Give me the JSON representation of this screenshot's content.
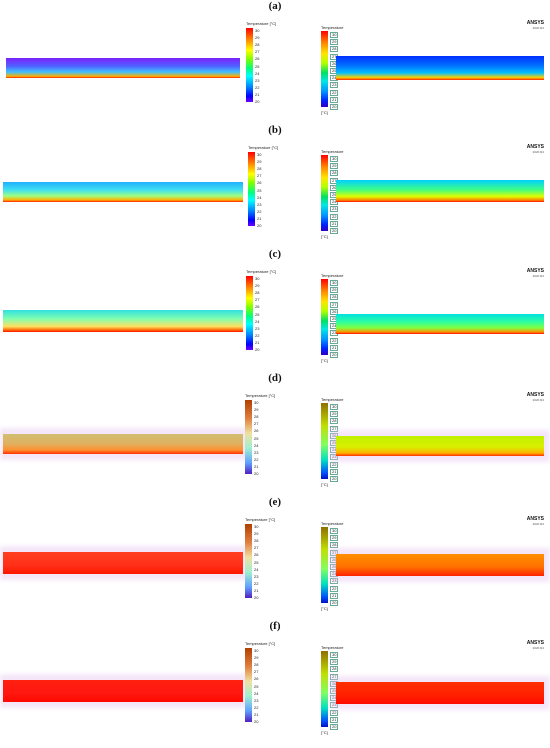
{
  "panels": [
    {
      "label": "(a)",
      "legend_title": "Temperature [°C]",
      "legend_title_right": "Temperature",
      "unit": "[°C]",
      "ansys": "ANSYS",
      "version": "2020 R2",
      "ticks": [
        "30",
        "29",
        "28",
        "27",
        "26",
        "25",
        "24",
        "23",
        "22",
        "21",
        "20"
      ]
    },
    {
      "label": "(b)",
      "legend_title": "Temperature [°C]",
      "legend_title_right": "Temperature",
      "unit": "[°C]",
      "ansys": "ANSYS",
      "version": "2020 R2",
      "ticks": [
        "30",
        "29",
        "28",
        "27",
        "26",
        "25",
        "24",
        "23",
        "22",
        "21",
        "20"
      ]
    },
    {
      "label": "(c)",
      "legend_title": "Temperature [°C]",
      "legend_title_right": "Temperature",
      "unit": "[°C]",
      "ansys": "ANSYS",
      "version": "2020 R2",
      "ticks": [
        "30",
        "29",
        "28",
        "27",
        "26",
        "25",
        "24",
        "23",
        "22",
        "21",
        "20"
      ]
    },
    {
      "label": "(d)",
      "legend_title": "Temperature [°C]",
      "legend_title_right": "Temperature",
      "unit": "[°C]",
      "ansys": "ANSYS",
      "version": "2020 R2",
      "ticks": [
        "30",
        "29",
        "28",
        "27",
        "26",
        "25",
        "24",
        "23",
        "22",
        "21",
        "20"
      ]
    },
    {
      "label": "(e)",
      "legend_title": "Temperature [°C]",
      "legend_title_right": "Temperature",
      "unit": "[°C]",
      "ansys": "ANSYS",
      "version": "2020 R2",
      "ticks": [
        "30",
        "29",
        "28",
        "27",
        "26",
        "25",
        "24",
        "23",
        "22",
        "21",
        "20"
      ]
    },
    {
      "label": "(f)",
      "legend_title": "Temperature [°C]",
      "legend_title_right": "Temperature",
      "unit": "[°C]",
      "ansys": "ANSYS",
      "version": "2020 R2",
      "ticks": [
        "30",
        "29",
        "28",
        "27",
        "26",
        "25",
        "24",
        "23",
        "22",
        "21",
        "20"
      ]
    }
  ],
  "colors": {
    "rainbow": [
      "#ff0000",
      "#ff8000",
      "#ffff00",
      "#80ff00",
      "#00ff80",
      "#00ffff",
      "#0080ff",
      "#0000ff",
      "#6a00ff"
    ],
    "ansys_scale": [
      "#ff0000",
      "#ff8000",
      "#ffe600",
      "#b4ff00",
      "#00e060",
      "#00e6e6",
      "#0090ff",
      "#0020ff",
      "#3000c0"
    ]
  }
}
